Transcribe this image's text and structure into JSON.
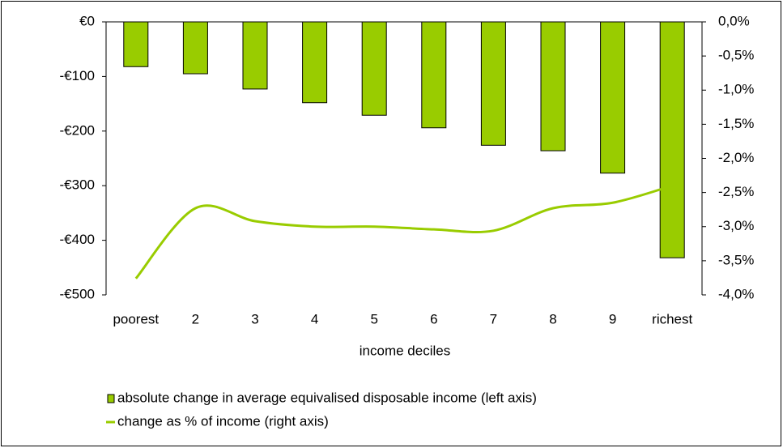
{
  "chart_data": {
    "type": "bar-line",
    "x_label": "income deciles",
    "categories": [
      "poorest",
      "2",
      "3",
      "4",
      "5",
      "6",
      "7",
      "8",
      "9",
      "richest"
    ],
    "series": [
      {
        "name": "absolute change in average equivalised disposable income (left axis)",
        "type": "bar",
        "color": "#99cc00",
        "values": [
          -82,
          -95,
          -123,
          -148,
          -171,
          -194,
          -226,
          -236,
          -277,
          -432
        ]
      },
      {
        "name": "change as % of income (right axis)",
        "type": "line",
        "axis": "y2",
        "color": "#99cc00",
        "values": [
          -3.76,
          -2.73,
          -2.92,
          -3.0,
          -3.0,
          -3.04,
          -3.06,
          -2.73,
          -2.65,
          -2.4
        ]
      }
    ],
    "ylim": [
      -500,
      0
    ],
    "yticks": [
      {
        "value": 0,
        "label": "€0"
      },
      {
        "value": -100,
        "label": "-€100"
      },
      {
        "value": -200,
        "label": "-€200"
      },
      {
        "value": -300,
        "label": "-€300"
      },
      {
        "value": -400,
        "label": "-€400"
      },
      {
        "value": -500,
        "label": "-€500"
      }
    ],
    "y2lim": [
      -4.0,
      0
    ],
    "y2ticks": [
      {
        "value": 0,
        "label": "0,0%"
      },
      {
        "value": -0.5,
        "label": "-0,5%"
      },
      {
        "value": -1.0,
        "label": "-1,0%"
      },
      {
        "value": -1.5,
        "label": "-1,5%"
      },
      {
        "value": -2.0,
        "label": "-2,0%"
      },
      {
        "value": -2.5,
        "label": "-2,5%"
      },
      {
        "value": -3.0,
        "label": "-3,0%"
      },
      {
        "value": -3.5,
        "label": "-3,5%"
      },
      {
        "value": -4.0,
        "label": "-4,0%"
      }
    ]
  }
}
